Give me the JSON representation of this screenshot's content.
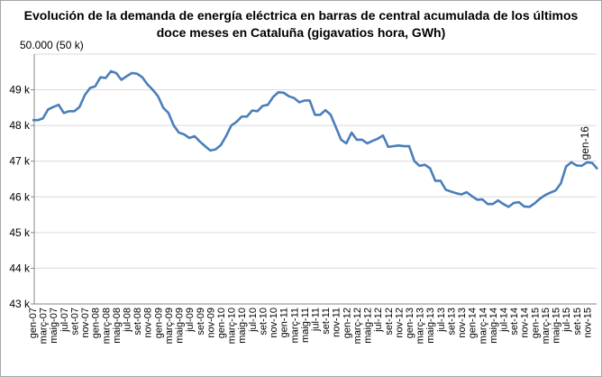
{
  "chart_data": {
    "type": "line",
    "title_line1": "Evolución de la demanda de energía eléctrica en barras de central acumulada de los últimos",
    "title_line2": "doce meses en Cataluña (gigavatios hora, GWh)",
    "top_annotation": "50.000  (50  k)",
    "end_annotation": "gen-16",
    "ylim": [
      43,
      50
    ],
    "y_ticks": [
      {
        "value": 43,
        "label": "43 k"
      },
      {
        "value": 44,
        "label": "44 k"
      },
      {
        "value": 45,
        "label": "45 k"
      },
      {
        "value": 46,
        "label": "46 k"
      },
      {
        "value": 47,
        "label": "47 k"
      },
      {
        "value": 48,
        "label": "48 k"
      },
      {
        "value": 49,
        "label": "49 k"
      }
    ],
    "x_tick_labels": [
      "gen-07",
      "març-07",
      "maig-07",
      "jul-07",
      "set-07",
      "nov-07",
      "gen-08",
      "març-08",
      "maig-08",
      "jul-08",
      "set-08",
      "nov-08",
      "gen-09",
      "març-09",
      "maig-09",
      "jul-09",
      "set-09",
      "nov-09",
      "gen-10",
      "març-10",
      "maig-10",
      "jul-10",
      "set-10",
      "nov-10",
      "gen-11",
      "març-11",
      "maig-11",
      "jul-11",
      "set-11",
      "nov-11",
      "gen-12",
      "març-12",
      "maig-12",
      "jul-12",
      "set-12",
      "nov-12",
      "gen-13",
      "març-13",
      "maig-13",
      "jul-13",
      "set-13",
      "nov-13",
      "gen-14",
      "març-14",
      "maig-14",
      "jul-14",
      "set-14",
      "nov-14",
      "gen-15",
      "març-15",
      "maig-15",
      "jul-15",
      "set-15",
      "nov-15"
    ],
    "series": [
      {
        "color": "#4a7ebb",
        "x": [
          "gen-07",
          "feb-07",
          "març-07",
          "abr-07",
          "maig-07",
          "juny-07",
          "jul-07",
          "ag-07",
          "set-07",
          "oct-07",
          "nov-07",
          "des-07",
          "gen-08",
          "feb-08",
          "març-08",
          "abr-08",
          "maig-08",
          "juny-08",
          "jul-08",
          "ag-08",
          "set-08",
          "oct-08",
          "nov-08",
          "des-08",
          "gen-09",
          "feb-09",
          "març-09",
          "abr-09",
          "maig-09",
          "juny-09",
          "jul-09",
          "ag-09",
          "set-09",
          "oct-09",
          "nov-09",
          "des-09",
          "gen-10",
          "feb-10",
          "març-10",
          "abr-10",
          "maig-10",
          "juny-10",
          "jul-10",
          "ag-10",
          "set-10",
          "oct-10",
          "nov-10",
          "des-10",
          "gen-11",
          "feb-11",
          "març-11",
          "abr-11",
          "maig-11",
          "juny-11",
          "jul-11",
          "ag-11",
          "set-11",
          "oct-11",
          "nov-11",
          "des-11",
          "gen-12",
          "feb-12",
          "març-12",
          "abr-12",
          "maig-12",
          "juny-12",
          "jul-12",
          "ag-12",
          "set-12",
          "oct-12",
          "nov-12",
          "des-12",
          "gen-13",
          "feb-13",
          "març-13",
          "abr-13",
          "maig-13",
          "juny-13",
          "jul-13",
          "ag-13",
          "set-13",
          "oct-13",
          "nov-13",
          "des-13",
          "gen-14",
          "feb-14",
          "març-14",
          "abr-14",
          "maig-14",
          "juny-14",
          "jul-14",
          "ag-14",
          "set-14",
          "oct-14",
          "nov-14",
          "des-14",
          "gen-15",
          "feb-15",
          "març-15",
          "abr-15",
          "maig-15",
          "juny-15",
          "jul-15",
          "ag-15",
          "set-15",
          "oct-15",
          "nov-15",
          "des-15",
          "gen-16"
        ],
        "values": [
          48.15,
          48.15,
          48.2,
          48.45,
          48.52,
          48.58,
          48.35,
          48.4,
          48.4,
          48.52,
          48.85,
          49.05,
          49.1,
          49.35,
          49.33,
          49.52,
          49.47,
          49.28,
          49.38,
          49.47,
          49.45,
          49.35,
          49.15,
          49.0,
          48.82,
          48.5,
          48.35,
          48.0,
          47.8,
          47.75,
          47.65,
          47.7,
          47.55,
          47.42,
          47.3,
          47.33,
          47.45,
          47.7,
          48.0,
          48.1,
          48.25,
          48.25,
          48.42,
          48.4,
          48.55,
          48.58,
          48.8,
          48.93,
          48.92,
          48.82,
          48.77,
          48.65,
          48.7,
          48.7,
          48.3,
          48.3,
          48.43,
          48.3,
          47.95,
          47.6,
          47.5,
          47.8,
          47.6,
          47.6,
          47.5,
          47.57,
          47.63,
          47.72,
          47.4,
          47.42,
          47.44,
          47.42,
          47.42,
          47.0,
          46.87,
          46.9,
          46.8,
          46.45,
          46.45,
          46.2,
          46.15,
          46.1,
          46.07,
          46.13,
          46.02,
          45.92,
          45.93,
          45.8,
          45.8,
          45.9,
          45.8,
          45.72,
          45.83,
          45.85,
          45.73,
          45.72,
          45.82,
          45.95,
          46.05,
          46.12,
          46.18,
          46.38,
          46.85,
          46.97,
          46.88,
          46.87,
          46.97,
          46.95,
          46.78
        ]
      }
    ],
    "grid": {
      "horizontal": true,
      "vertical": false
    },
    "legend": "none"
  }
}
